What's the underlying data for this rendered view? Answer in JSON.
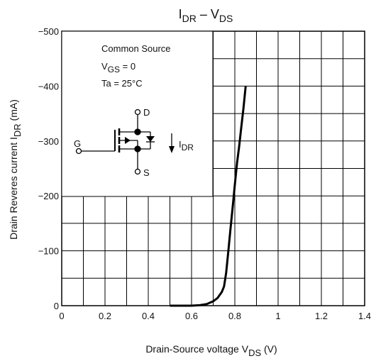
{
  "chart_data": {
    "type": "line",
    "title_main": "I",
    "title_sub1": "DR",
    "title_mid": " – V",
    "title_sub2": "DS",
    "xlabel_main": "Drain-Source voltage   V",
    "xlabel_sub": "DS",
    "xlabel_unit": "   (V)",
    "ylabel_main": "Drain Reveres current   I",
    "ylabel_sub": "DR",
    "ylabel_unit": "   (mA)",
    "xlim": [
      0,
      1.4
    ],
    "ylim": [
      0,
      -500
    ],
    "x_ticks": [
      0,
      0.2,
      0.4,
      0.6,
      0.8,
      1,
      1.2,
      1.4
    ],
    "x_tick_labels": [
      "0",
      "0.2",
      "0.4",
      "0.6",
      "0.8",
      "1",
      "1.2",
      "1.4"
    ],
    "y_ticks": [
      0,
      -100,
      -200,
      -300,
      -400,
      -500
    ],
    "y_tick_labels": [
      "0",
      "−100",
      "−200",
      "−300",
      "−400",
      "−500"
    ],
    "grid": true,
    "series": [
      {
        "x": [
          0.5,
          0.6,
          0.64,
          0.67,
          0.7,
          0.72,
          0.74,
          0.75,
          0.76,
          0.77,
          0.78,
          0.79,
          0.8,
          0.81,
          0.82,
          0.83,
          0.84,
          0.85
        ],
        "y": [
          0,
          0,
          -1,
          -3,
          -8,
          -14,
          -25,
          -35,
          -60,
          -100,
          -140,
          -180,
          -220,
          -260,
          -290,
          -325,
          -360,
          -400
        ]
      }
    ],
    "annotations": {
      "line1": "Common Source",
      "line2_main": "V",
      "line2_sub": "GS",
      "line2_rest": " = 0",
      "line3": "Ta = 25°C",
      "pin_d": "D",
      "pin_g": "G",
      "pin_s": "S",
      "current_main": "I",
      "current_sub": "DR"
    },
    "colors": {
      "line": "#000000",
      "grid": "#000000",
      "background": "#ffffff"
    }
  }
}
